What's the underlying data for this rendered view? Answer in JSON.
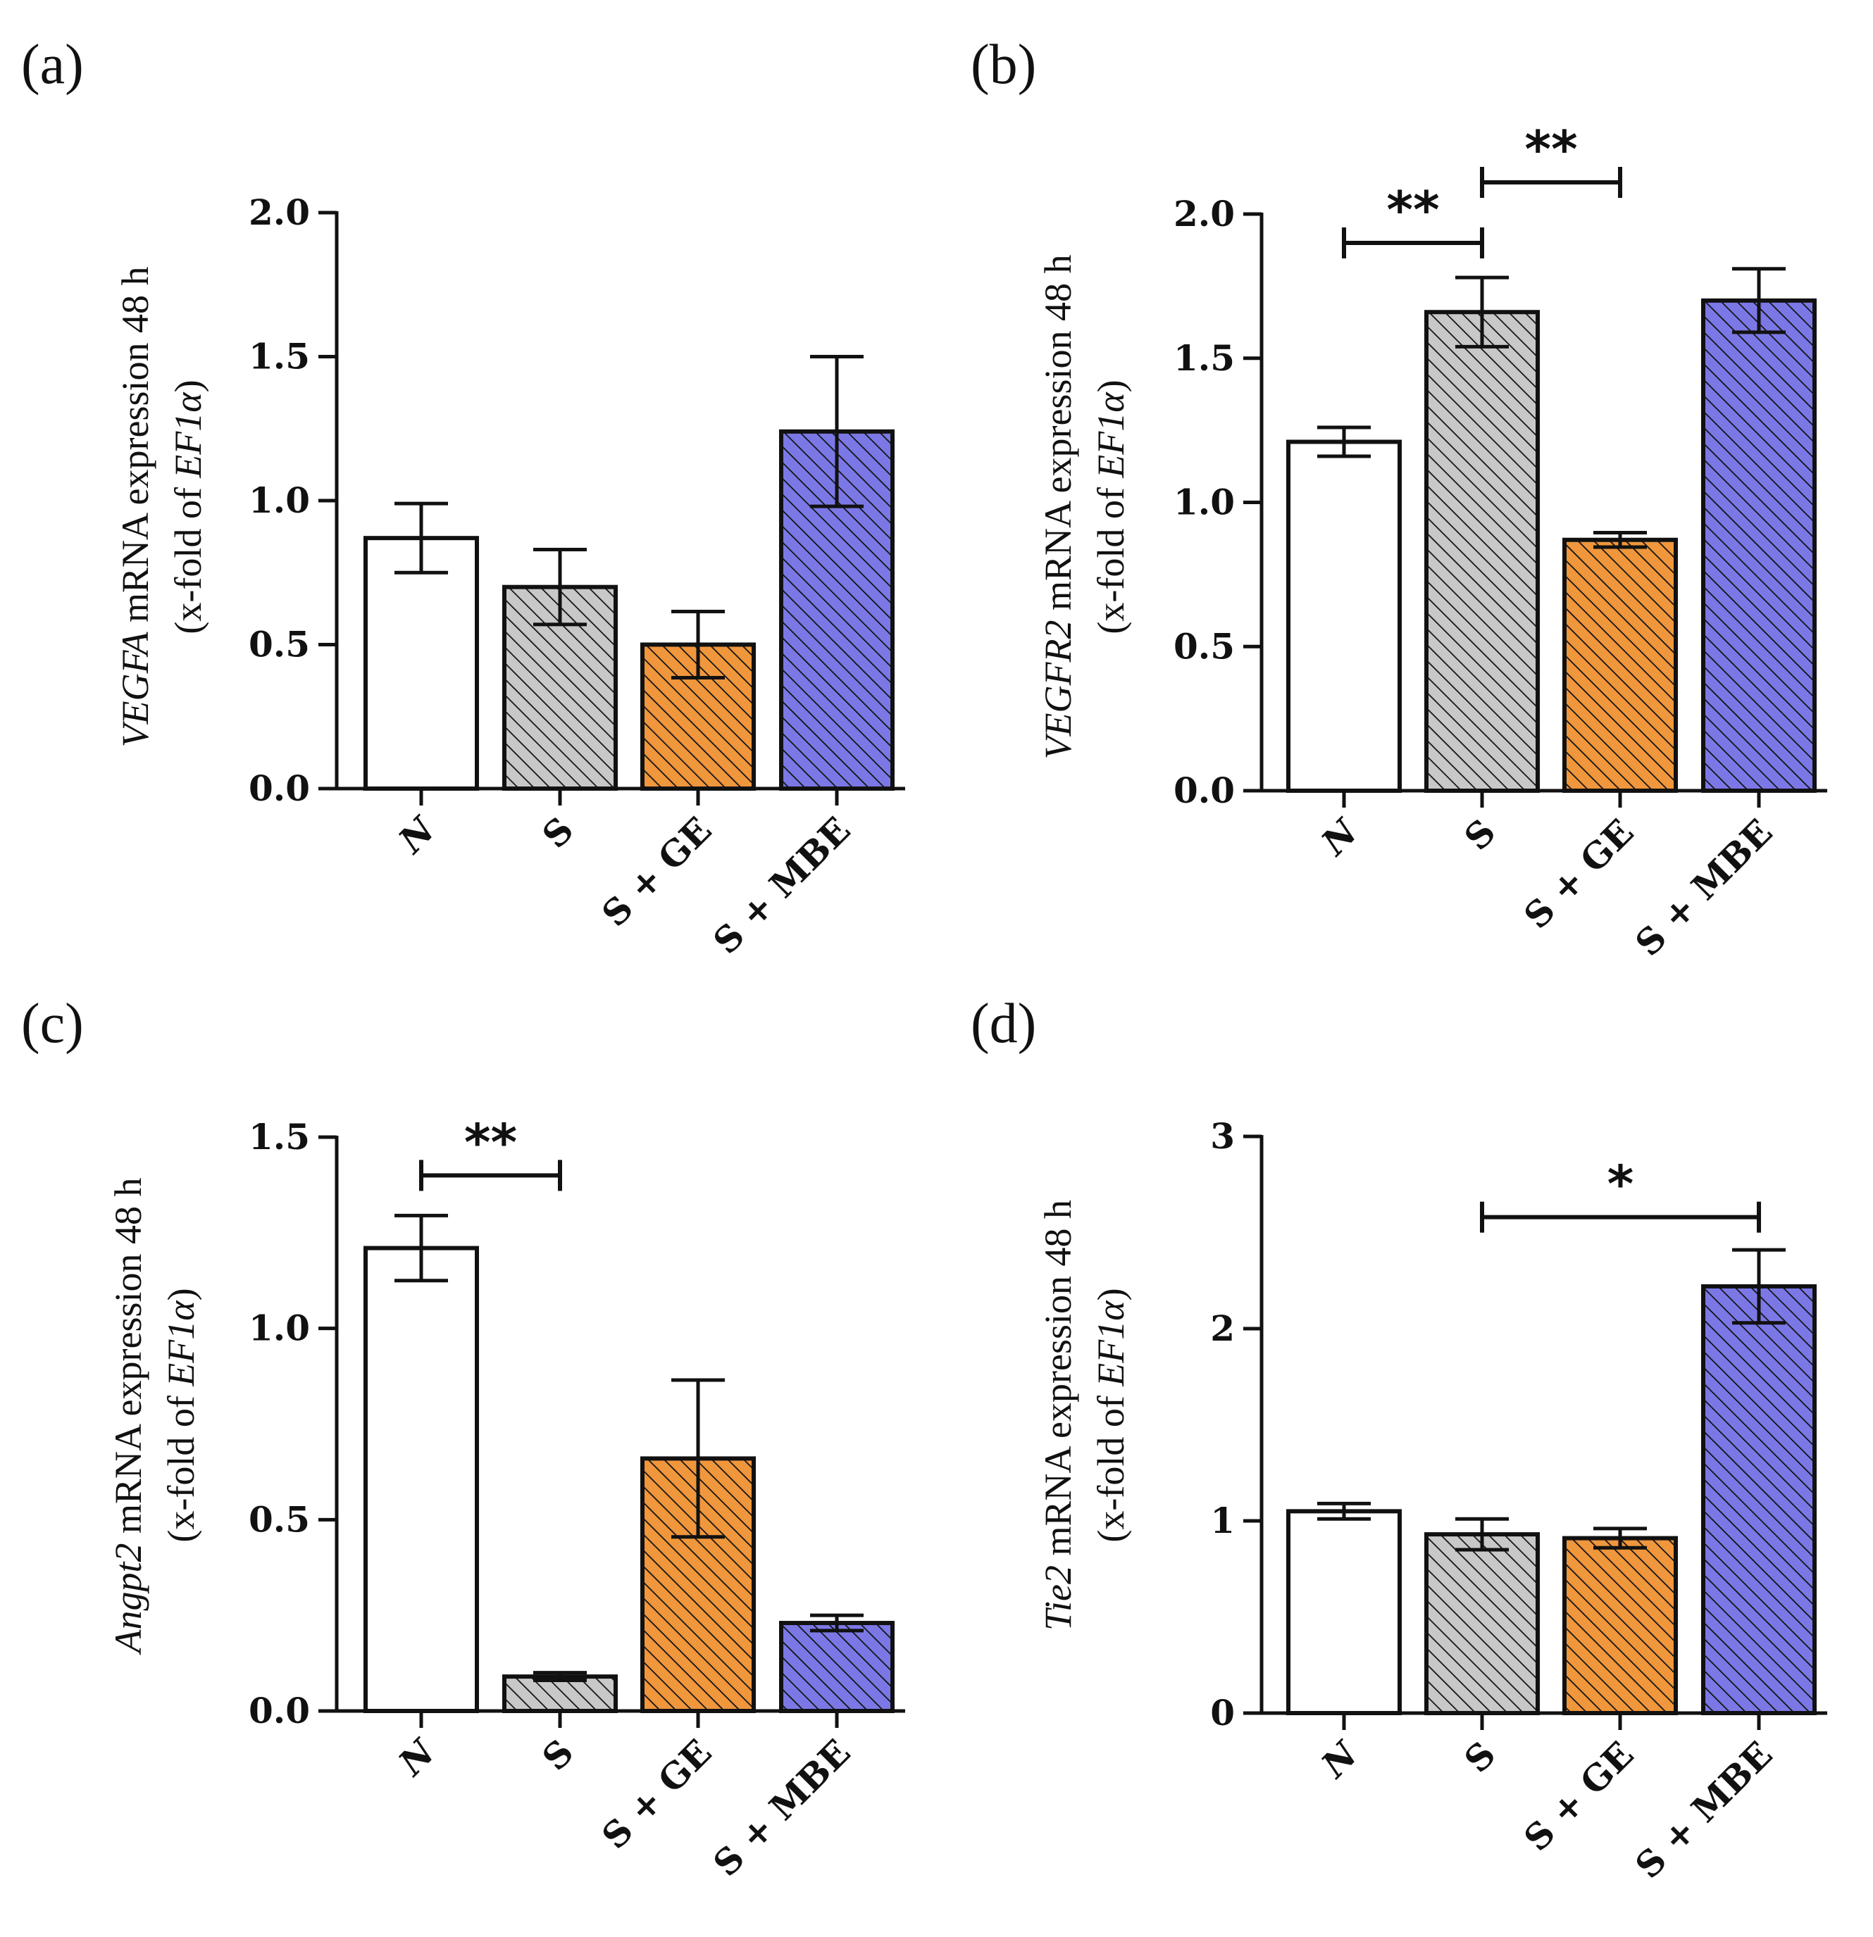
{
  "chart_data": [
    {
      "type": "bar",
      "panel_label": "(a)",
      "categories": [
        "N",
        "S",
        "S + GE",
        "S + MBE"
      ],
      "values": [
        0.87,
        0.7,
        0.5,
        1.24
      ],
      "errors": [
        0.12,
        0.13,
        0.115,
        0.26
      ],
      "ylim": [
        0,
        2.0
      ],
      "yticks": [
        "0.0",
        "0.5",
        "1.0",
        "1.5",
        "2.0"
      ],
      "ylabel_gene": "VEGFA",
      "ylabel_line1": " mRNA expression 48 h",
      "ylabel_line2_prefix": "(x-fold of ",
      "ylabel_line2_gene": "EF1α",
      "ylabel_line2_suffix": ")",
      "significance": []
    },
    {
      "type": "bar",
      "panel_label": "(b)",
      "categories": [
        "N",
        "S",
        "S + GE",
        "S + MBE"
      ],
      "values": [
        1.21,
        1.66,
        0.87,
        1.7
      ],
      "errors": [
        0.05,
        0.12,
        0.025,
        0.11
      ],
      "ylim": [
        0,
        2.0
      ],
      "yticks": [
        "0.0",
        "0.5",
        "1.0",
        "1.5",
        "2.0"
      ],
      "ylabel_gene": "VEGFR2",
      "ylabel_line1": " mRNA expression 48 h",
      "ylabel_line2_prefix": "(x-fold of ",
      "ylabel_line2_gene": "EF1α",
      "ylabel_line2_suffix": ")",
      "significance": [
        {
          "from": 0,
          "to": 1,
          "label": "**",
          "y": 1.9
        },
        {
          "from": 1,
          "to": 2,
          "label": "**",
          "y": 2.11
        }
      ]
    },
    {
      "type": "bar",
      "panel_label": "(c)",
      "categories": [
        "N",
        "S",
        "S + GE",
        "S + MBE"
      ],
      "values": [
        1.21,
        0.09,
        0.66,
        0.23
      ],
      "errors": [
        0.085,
        0.01,
        0.205,
        0.02
      ],
      "ylim": [
        0,
        1.5
      ],
      "yticks": [
        "0.0",
        "0.5",
        "1.0",
        "1.5"
      ],
      "ylabel_gene": "Angpt2",
      "ylabel_line1": " mRNA expression 48 h",
      "ylabel_line2_prefix": "(x-fold of ",
      "ylabel_line2_gene": "EF1α",
      "ylabel_line2_suffix": ")",
      "significance": [
        {
          "from": 0,
          "to": 1,
          "label": "**",
          "y": 1.4
        }
      ]
    },
    {
      "type": "bar",
      "panel_label": "(d)",
      "categories": [
        "N",
        "S",
        "S + GE",
        "S + MBE"
      ],
      "values": [
        1.05,
        0.93,
        0.91,
        2.22
      ],
      "errors": [
        0.04,
        0.08,
        0.05,
        0.19
      ],
      "ylim": [
        0,
        3
      ],
      "yticks": [
        "0",
        "1",
        "2",
        "3"
      ],
      "ylabel_gene": "Tie2",
      "ylabel_line1": " mRNA expression 48 h",
      "ylabel_line2_prefix": "(x-fold of ",
      "ylabel_line2_gene": "EF1α",
      "ylabel_line2_suffix": ")",
      "significance": [
        {
          "from": 1,
          "to": 3,
          "label": "*",
          "y": 2.58
        }
      ]
    }
  ],
  "colors": {
    "N": "#ffffff",
    "S": "#c8c8c8",
    "S + GE": "#f0963c",
    "S + MBE": "#7b78e6",
    "stroke": "#111111"
  }
}
